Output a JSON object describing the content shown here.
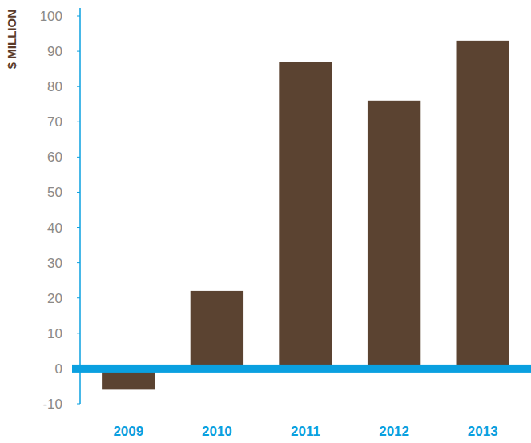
{
  "chart_data": {
    "type": "bar",
    "y_label": "$ MILLION",
    "categories": [
      "2009",
      "2010",
      "2011",
      "2012",
      "2013"
    ],
    "values": [
      -6,
      22,
      87,
      76,
      93
    ],
    "color": "#5b4331",
    "ylim": [
      -10,
      100
    ],
    "yticks": [
      -10,
      0,
      10,
      20,
      30,
      40,
      50,
      60,
      70,
      80,
      90,
      100
    ],
    "grid": false
  }
}
